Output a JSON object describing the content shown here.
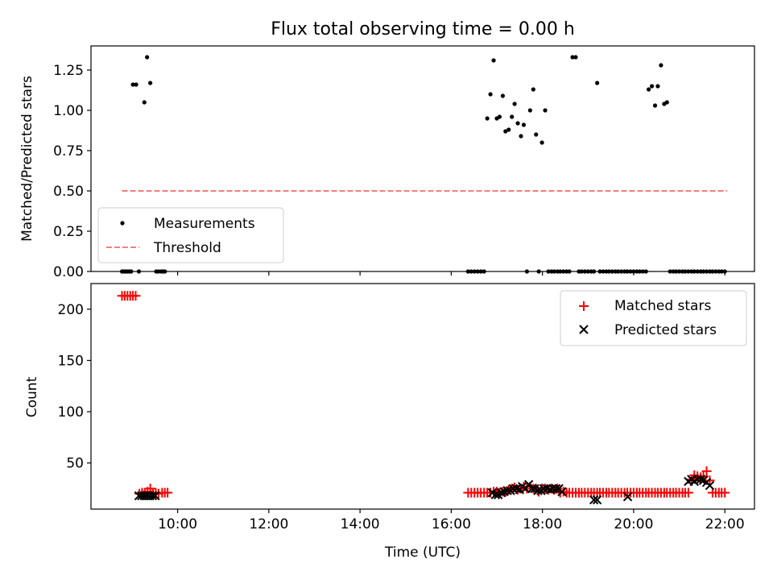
{
  "figure": {
    "title": "Flux total observing time = 0.00 h"
  },
  "chart_data": [
    {
      "type": "scatter",
      "panel": "top",
      "ylabel": "Matched/Predicted stars",
      "xlabel": "",
      "xlim": [
        8.1,
        22.65
      ],
      "ylim": [
        0,
        1.4
      ],
      "yticks": [
        0.0,
        0.25,
        0.5,
        0.75,
        1.0,
        1.25
      ],
      "ytick_labels": [
        "0.00",
        "0.25",
        "0.50",
        "0.75",
        "1.00",
        "1.25"
      ],
      "xticks": [
        10,
        12,
        14,
        16,
        18,
        20,
        22
      ],
      "show_xtick_labels": false,
      "grid": false,
      "legend": "lower-left",
      "series": [
        {
          "name": "Measurements",
          "kind": "points",
          "color": "#000000",
          "x": [
            8.78,
            8.82,
            8.86,
            8.9,
            8.94,
            8.98,
            9.02,
            9.09,
            9.15,
            9.27,
            9.33,
            9.4,
            9.53,
            9.58,
            9.64,
            9.68,
            9.72,
            16.37,
            16.44,
            16.51,
            16.58,
            16.65,
            16.72,
            16.79,
            16.86,
            16.93,
            17.0,
            17.06,
            17.13,
            17.19,
            17.26,
            17.33,
            17.39,
            17.46,
            17.53,
            17.59,
            17.66,
            17.73,
            17.8,
            17.86,
            17.92,
            17.99,
            18.06,
            18.13,
            18.2,
            18.26,
            18.33,
            18.39,
            18.46,
            18.53,
            18.59,
            18.66,
            18.73,
            18.8,
            18.86,
            18.93,
            19.0,
            19.07,
            19.13,
            19.2,
            19.26,
            19.33,
            19.4,
            19.46,
            19.53,
            19.6,
            19.66,
            19.73,
            19.8,
            19.86,
            19.93,
            20.0,
            20.07,
            20.13,
            20.2,
            20.27,
            20.33,
            20.4,
            20.47,
            20.53,
            20.6,
            20.67,
            20.73,
            20.8,
            20.87,
            20.93,
            21.0,
            21.07,
            21.13,
            21.2,
            21.27,
            21.33,
            21.4,
            21.47,
            21.53,
            21.6,
            21.67,
            21.73,
            21.8,
            21.87,
            21.93,
            22.0
          ],
          "y": [
            0,
            0,
            0,
            0,
            0,
            0,
            1.16,
            1.16,
            0,
            1.05,
            1.33,
            1.17,
            0,
            0,
            0,
            0,
            0,
            0,
            0,
            0,
            0,
            0,
            0,
            0.95,
            1.1,
            1.31,
            0.95,
            0.96,
            1.09,
            0.87,
            0.88,
            0.96,
            1.04,
            0.92,
            0.84,
            0.91,
            0,
            1.0,
            1.13,
            0.85,
            0,
            0.8,
            1.0,
            0,
            0,
            0,
            0,
            0,
            0,
            0,
            0,
            1.33,
            1.33,
            0,
            0,
            0,
            0,
            0,
            0,
            1.17,
            0,
            0,
            0,
            0,
            0,
            0,
            0,
            0,
            0,
            0,
            0,
            0,
            0,
            0,
            0,
            0,
            1.13,
            1.15,
            1.03,
            1.15,
            1.28,
            1.04,
            1.05,
            0,
            0,
            0,
            0,
            0,
            0,
            0,
            0,
            0,
            0,
            0,
            0,
            0,
            0,
            0,
            0,
            0,
            0,
            0
          ]
        },
        {
          "name": "Threshold",
          "kind": "dashed-line",
          "color": "#f08080",
          "x": [
            8.78,
            22.05
          ],
          "y": [
            0.5,
            0.5
          ]
        }
      ]
    },
    {
      "type": "scatter",
      "panel": "bottom",
      "ylabel": "Count",
      "xlabel": "Time (UTC)",
      "xlim": [
        8.1,
        22.65
      ],
      "ylim": [
        5,
        225
      ],
      "yticks": [
        50,
        100,
        150,
        200
      ],
      "ytick_labels": [
        "50",
        "100",
        "150",
        "200"
      ],
      "xticks": [
        10,
        12,
        14,
        16,
        18,
        20,
        22
      ],
      "xtick_labels": [
        "10:00",
        "12:00",
        "14:00",
        "16:00",
        "18:00",
        "20:00",
        "22:00"
      ],
      "grid": false,
      "legend": "top-right",
      "series": [
        {
          "name": "Matched stars",
          "kind": "plus",
          "color": "#ff0000",
          "x": [
            8.78,
            8.84,
            8.9,
            8.96,
            9.02,
            9.08,
            9.16,
            9.22,
            9.28,
            9.34,
            9.4,
            9.46,
            9.52,
            9.58,
            9.66,
            9.72,
            9.78,
            16.37,
            16.44,
            16.51,
            16.58,
            16.65,
            16.72,
            16.79,
            16.86,
            16.93,
            17.0,
            17.06,
            17.13,
            17.19,
            17.26,
            17.33,
            17.39,
            17.46,
            17.53,
            17.59,
            17.66,
            17.73,
            17.8,
            17.86,
            17.92,
            17.99,
            18.06,
            18.13,
            18.2,
            18.26,
            18.33,
            18.39,
            18.46,
            18.53,
            18.59,
            18.66,
            18.73,
            18.8,
            18.86,
            18.93,
            19.0,
            19.07,
            19.13,
            19.2,
            19.26,
            19.33,
            19.4,
            19.46,
            19.53,
            19.6,
            19.66,
            19.73,
            19.8,
            19.86,
            19.93,
            20.0,
            20.07,
            20.13,
            20.2,
            20.27,
            20.33,
            20.4,
            20.47,
            20.53,
            20.6,
            20.67,
            20.73,
            20.8,
            20.87,
            20.93,
            21.0,
            21.07,
            21.13,
            21.2,
            21.27,
            21.33,
            21.4,
            21.47,
            21.53,
            21.6,
            21.67,
            21.73,
            21.8,
            21.87,
            21.93,
            22.0
          ],
          "y": [
            213,
            213,
            213,
            213,
            213,
            213,
            20,
            21,
            21,
            22,
            25,
            21,
            21,
            20,
            21,
            21,
            21,
            21,
            21,
            21,
            21,
            21,
            21,
            21,
            21,
            22,
            22,
            21,
            22,
            22,
            24,
            25,
            26,
            24,
            25,
            27,
            25,
            27,
            25,
            25,
            22,
            25,
            25,
            24,
            25,
            24,
            25,
            21,
            22,
            21,
            21,
            21,
            21,
            21,
            21,
            21,
            21,
            21,
            21,
            21,
            21,
            21,
            21,
            21,
            21,
            21,
            21,
            21,
            21,
            21,
            21,
            21,
            21,
            21,
            21,
            21,
            21,
            21,
            21,
            21,
            21,
            21,
            21,
            21,
            21,
            21,
            21,
            21,
            21,
            21,
            34,
            38,
            37,
            36,
            37,
            42,
            33,
            21,
            21,
            21,
            21,
            21
          ]
        },
        {
          "name": "Predicted stars",
          "kind": "x",
          "color": "#000000",
          "x": [
            9.15,
            9.21,
            9.27,
            9.33,
            9.39,
            9.45,
            9.51,
            16.9,
            16.97,
            17.03,
            17.1,
            17.16,
            17.23,
            17.3,
            17.36,
            17.43,
            17.5,
            17.56,
            17.63,
            17.7,
            17.77,
            17.83,
            17.9,
            17.97,
            18.03,
            18.1,
            18.17,
            18.23,
            18.3,
            18.36,
            18.43,
            19.13,
            19.2,
            19.87,
            21.2,
            21.27,
            21.33,
            21.4,
            21.47,
            21.53,
            21.6,
            21.67
          ],
          "y": [
            18,
            18,
            18,
            18,
            18,
            18,
            18,
            21,
            19,
            19,
            21,
            22,
            23,
            23,
            25,
            25,
            24,
            27,
            25,
            29,
            25,
            25,
            23,
            23,
            25,
            25,
            24,
            25,
            25,
            25,
            22,
            14,
            14,
            17,
            32,
            34,
            32,
            34,
            34,
            33,
            31,
            28
          ]
        }
      ]
    }
  ]
}
